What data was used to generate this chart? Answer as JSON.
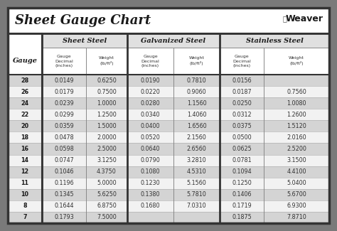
{
  "title": "Sheet Gauge Chart",
  "bg_outer": "#7a7a7a",
  "bg_inner": "#f0efee",
  "bg_title": "#ffffff",
  "bg_table": "#ffffff",
  "row_odd": "#d4d4d4",
  "row_even": "#f2f2f2",
  "border_dark": "#333333",
  "border_mid": "#888888",
  "text_dark": "#1a1a1a",
  "text_mid": "#333333",
  "gauges": [
    28,
    26,
    24,
    22,
    20,
    18,
    16,
    14,
    12,
    11,
    10,
    8,
    7
  ],
  "sheet_steel_decimal": [
    "0.0149",
    "0.0179",
    "0.0239",
    "0.0299",
    "0.0359",
    "0.0478",
    "0.0598",
    "0.0747",
    "0.1046",
    "0.1196",
    "0.1345",
    "0.1644",
    "0.1793"
  ],
  "sheet_steel_weight": [
    "0.6250",
    "0.7500",
    "1.0000",
    "1.2500",
    "1.5000",
    "2.0000",
    "2.5000",
    "3.1250",
    "4.3750",
    "5.0000",
    "5.6250",
    "6.8750",
    "7.5000"
  ],
  "galv_decimal": [
    "0.0190",
    "0.0220",
    "0.0280",
    "0.0340",
    "0.0400",
    "0.0520",
    "0.0640",
    "0.0790",
    "0.1080",
    "0.1230",
    "0.1380",
    "0.1680",
    ""
  ],
  "galv_weight": [
    "0.7810",
    "0.9060",
    "1.1560",
    "1.4060",
    "1.6560",
    "2.1560",
    "2.6560",
    "3.2810",
    "4.5310",
    "5.1560",
    "5.7810",
    "7.0310",
    ""
  ],
  "stainless_decimal": [
    "0.0156",
    "0.0187",
    "0.0250",
    "0.0312",
    "0.0375",
    "0.0500",
    "0.0625",
    "0.0781",
    "0.1094",
    "0.1250",
    "0.1406",
    "0.1719",
    "0.1875"
  ],
  "stainless_weight": [
    "",
    "0.7560",
    "1.0080",
    "1.2600",
    "1.5120",
    "2.0160",
    "2.5200",
    "3.1500",
    "4.4100",
    "5.0400",
    "5.6700",
    "6.9300",
    "7.8710"
  ],
  "figw": 4.74,
  "figh": 3.25,
  "dpi": 100
}
